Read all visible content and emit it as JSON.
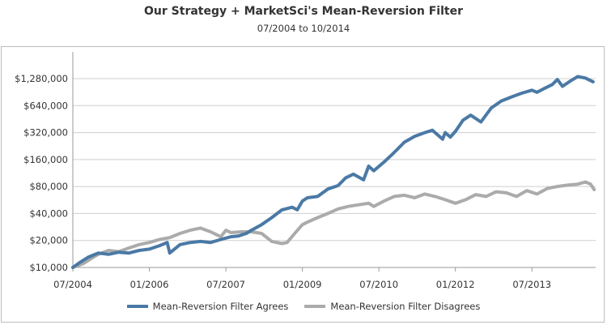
{
  "colors": {
    "agrees": "#4a79a5",
    "disagrees": "#ababab",
    "grid": "#cfcfcf",
    "axis": "#9a9a9a"
  },
  "chart_data": {
    "type": "line",
    "title": "Our Strategy + MarketSci's Mean-Reversion Filter",
    "subtitle": "07/2004 to 10/2014",
    "xlabel": "",
    "ylabel": "",
    "y_scale": "log2",
    "ylim": [
      10000,
      1800000
    ],
    "y_ticks": [
      {
        "value": 10000,
        "label": "$10,000"
      },
      {
        "value": 20000,
        "label": "$20,000"
      },
      {
        "value": 40000,
        "label": "$40,000"
      },
      {
        "value": 80000,
        "label": "$80,000"
      },
      {
        "value": 160000,
        "label": "$160,000"
      },
      {
        "value": 320000,
        "label": "$320,000"
      },
      {
        "value": 640000,
        "label": "$640,000"
      },
      {
        "value": 1280000,
        "label": "$1,280,000"
      }
    ],
    "xlim": [
      2004.5,
      2014.75
    ],
    "x_ticks": [
      {
        "value": 2004.5,
        "label": "07/2004"
      },
      {
        "value": 2006.0,
        "label": "01/2006"
      },
      {
        "value": 2007.5,
        "label": "07/2007"
      },
      {
        "value": 2009.0,
        "label": "01/2009"
      },
      {
        "value": 2010.5,
        "label": "07/2010"
      },
      {
        "value": 2012.0,
        "label": "01/2012"
      },
      {
        "value": 2013.5,
        "label": "07/2013"
      }
    ],
    "legend_position": "bottom",
    "series": [
      {
        "name": "Mean-Reversion Filter Agrees",
        "color": "#4a79a5",
        "x": [
          2004.5,
          2004.65,
          2004.8,
          2005.0,
          2005.2,
          2005.4,
          2005.6,
          2005.8,
          2006.0,
          2006.2,
          2006.35,
          2006.4,
          2006.6,
          2006.8,
          2007.0,
          2007.2,
          2007.4,
          2007.6,
          2007.75,
          2007.9,
          2008.0,
          2008.2,
          2008.4,
          2008.6,
          2008.8,
          2008.9,
          2009.0,
          2009.1,
          2009.3,
          2009.5,
          2009.7,
          2009.85,
          2010.0,
          2010.2,
          2010.3,
          2010.4,
          2010.6,
          2010.75,
          2010.85,
          2011.0,
          2011.2,
          2011.4,
          2011.55,
          2011.75,
          2011.8,
          2011.9,
          2012.0,
          2012.1,
          2012.15,
          2012.3,
          2012.5,
          2012.7,
          2012.9,
          2013.1,
          2013.3,
          2013.5,
          2013.6,
          2013.75,
          2013.9,
          2014.0,
          2014.1,
          2014.25,
          2014.4,
          2014.55,
          2014.7
        ],
        "values": [
          10000,
          11500,
          13000,
          14500,
          14000,
          14800,
          14500,
          15500,
          16000,
          17500,
          19000,
          14500,
          18000,
          19000,
          19500,
          19000,
          20500,
          22000,
          22500,
          24000,
          26000,
          30000,
          36000,
          44000,
          47000,
          44000,
          55000,
          60000,
          62000,
          75000,
          82000,
          100000,
          110000,
          95000,
          135000,
          120000,
          150000,
          180000,
          205000,
          250000,
          290000,
          320000,
          340000,
          270000,
          320000,
          285000,
          330000,
          400000,
          440000,
          500000,
          420000,
          600000,
          720000,
          800000,
          880000,
          950000,
          900000,
          1000000,
          1100000,
          1250000,
          1050000,
          1200000,
          1350000,
          1300000,
          1180000
        ]
      },
      {
        "name": "Mean-Reversion Filter Disagrees",
        "color": "#ababab",
        "x": [
          2004.5,
          2004.7,
          2004.9,
          2005.0,
          2005.2,
          2005.4,
          2005.6,
          2005.8,
          2006.0,
          2006.2,
          2006.4,
          2006.6,
          2006.8,
          2007.0,
          2007.2,
          2007.4,
          2007.5,
          2007.6,
          2007.8,
          2008.0,
          2008.2,
          2008.4,
          2008.6,
          2008.7,
          2008.85,
          2009.0,
          2009.1,
          2009.3,
          2009.5,
          2009.7,
          2009.9,
          2010.1,
          2010.3,
          2010.4,
          2010.6,
          2010.8,
          2011.0,
          2011.2,
          2011.4,
          2011.6,
          2011.8,
          2012.0,
          2012.2,
          2012.4,
          2012.6,
          2012.8,
          2013.0,
          2013.2,
          2013.4,
          2013.6,
          2013.8,
          2014.0,
          2014.2,
          2014.4,
          2014.55,
          2014.65,
          2014.72
        ],
        "values": [
          10000,
          11000,
          13000,
          14000,
          15500,
          15000,
          16500,
          18000,
          19000,
          20500,
          21500,
          24000,
          26000,
          27500,
          25000,
          22000,
          26000,
          24500,
          25000,
          25000,
          24000,
          19500,
          18500,
          19000,
          24000,
          30000,
          32000,
          36000,
          40000,
          45000,
          48000,
          50000,
          52000,
          48000,
          55000,
          62000,
          64000,
          60000,
          66000,
          62000,
          57000,
          52000,
          57000,
          65000,
          62000,
          70000,
          68000,
          62000,
          72000,
          66000,
          76000,
          80000,
          83000,
          85000,
          90000,
          85000,
          74000
        ]
      }
    ]
  }
}
